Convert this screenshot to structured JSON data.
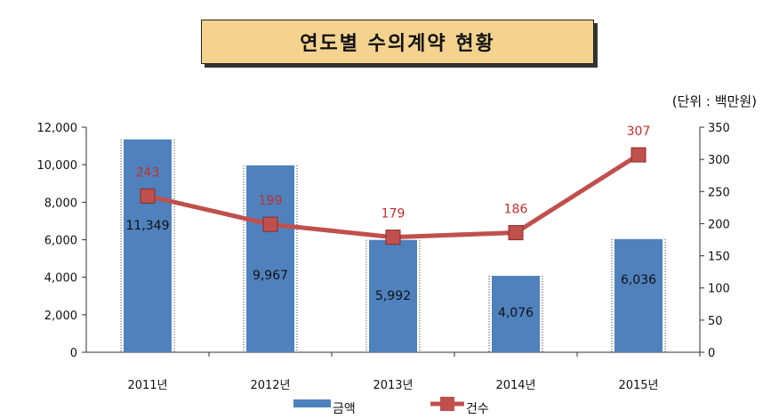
{
  "chart_data": {
    "type": "bar",
    "title": "연도별 수의계약 현황",
    "unit_label": "(단위 : 백만원)",
    "categories": [
      "2011년",
      "2012년",
      "2013년",
      "2014년",
      "2015년"
    ],
    "series": [
      {
        "name": "금액",
        "type": "bar",
        "axis": "left",
        "color": "#4f81bd",
        "values": [
          11349,
          9967,
          5992,
          4076,
          6036
        ],
        "labels": [
          "11,349",
          "9,967",
          "5,992",
          "4,076",
          "6,036"
        ]
      },
      {
        "name": "건수",
        "type": "line",
        "axis": "right",
        "color": "#c0504d",
        "values": [
          243,
          199,
          179,
          186,
          307
        ],
        "labels": [
          "243",
          "199",
          "179",
          "186",
          "307"
        ]
      }
    ],
    "y_left": {
      "min": 0,
      "max": 12000,
      "ticks": [
        "0",
        "2,000",
        "4,000",
        "6,000",
        "8,000",
        "10,000",
        "12,000"
      ]
    },
    "y_right": {
      "min": 0,
      "max": 350,
      "ticks": [
        "0",
        "50",
        "100",
        "150",
        "200",
        "250",
        "300",
        "350"
      ]
    },
    "legend_position": "bottom"
  }
}
